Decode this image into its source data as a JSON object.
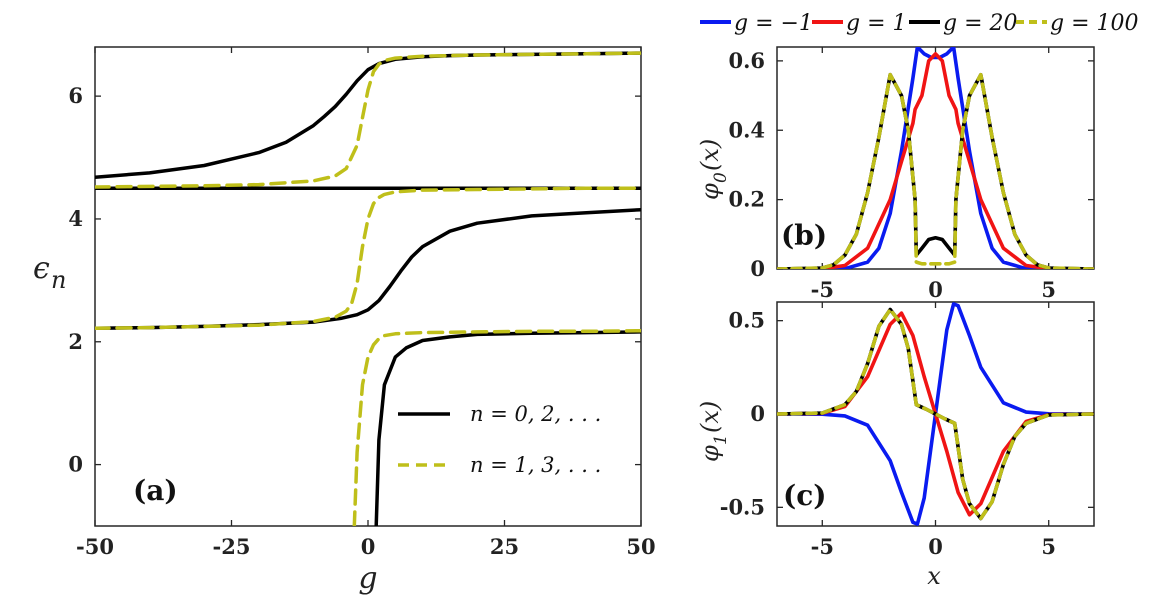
{
  "colors": {
    "black": "#000000",
    "yellow": "#bfbf1a",
    "blue": "#0a1bf0",
    "red": "#f01414"
  },
  "chart_data": [
    {
      "type": "line",
      "panel": "(a)",
      "xlabel": "g",
      "ylabel": "ε_n",
      "ylabel_base": "ϵ",
      "ylabel_sub": "n",
      "xlim": [
        -50,
        50
      ],
      "ylim": [
        -1,
        6.8
      ],
      "xticks": [
        -50,
        -25,
        0,
        25,
        50
      ],
      "xtick_labels": [
        "-50",
        "-25",
        "0",
        "25",
        "50"
      ],
      "yticks": [
        0,
        2,
        4,
        6
      ],
      "ytick_labels": [
        "0",
        "2",
        "4",
        "6"
      ],
      "legend": [
        {
          "label": "n = 0, 2, . . .",
          "style": "solid",
          "color": "#000000"
        },
        {
          "label": "n = 1, 3, . . .",
          "style": "dashed",
          "color": "#bfbf1a"
        }
      ],
      "series": [
        {
          "name": "n = 0",
          "group": "even",
          "x": [
            1.5,
            2,
            3,
            5,
            7,
            10,
            15,
            20,
            30,
            40,
            50
          ],
          "y": [
            -1,
            0.4,
            1.3,
            1.75,
            1.9,
            2.02,
            2.08,
            2.12,
            2.14,
            2.15,
            2.16
          ]
        },
        {
          "name": "n = 2",
          "group": "even",
          "x": [
            -50,
            -40,
            -30,
            -20,
            -10,
            -5,
            -2,
            0,
            2,
            4,
            6,
            8,
            10,
            15,
            20,
            30,
            40,
            50
          ],
          "y": [
            2.22,
            2.23,
            2.25,
            2.28,
            2.32,
            2.38,
            2.44,
            2.52,
            2.67,
            2.9,
            3.15,
            3.38,
            3.55,
            3.8,
            3.93,
            4.05,
            4.1,
            4.15
          ]
        },
        {
          "name": "n = 4",
          "group": "even",
          "x": [
            -50,
            50
          ],
          "y": [
            4.5,
            4.5
          ]
        },
        {
          "name": "n = 6",
          "group": "even",
          "x": [
            -50,
            -40,
            -30,
            -20,
            -15,
            -10,
            -8,
            -6,
            -4,
            -2,
            0,
            2,
            5,
            10,
            15,
            20,
            30,
            40,
            50
          ],
          "y": [
            4.68,
            4.75,
            4.87,
            5.08,
            5.25,
            5.52,
            5.67,
            5.83,
            6.03,
            6.25,
            6.43,
            6.53,
            6.6,
            6.64,
            6.66,
            6.67,
            6.68,
            6.69,
            6.7
          ]
        },
        {
          "name": "n = 1",
          "group": "odd",
          "x": [
            -2.5,
            -2,
            -1,
            0,
            1,
            2,
            3,
            5,
            10,
            20,
            30,
            40,
            50
          ],
          "y": [
            -1,
            0.2,
            1.3,
            1.75,
            1.95,
            2.05,
            2.1,
            2.13,
            2.15,
            2.16,
            2.17,
            2.17,
            2.18
          ]
        },
        {
          "name": "n = 3",
          "group": "odd",
          "x": [
            -50,
            -40,
            -30,
            -20,
            -10,
            -6,
            -4,
            -3,
            -2,
            -1,
            0,
            1,
            2,
            3,
            5,
            10,
            20,
            30,
            40,
            50
          ],
          "y": [
            2.22,
            2.23,
            2.25,
            2.27,
            2.33,
            2.4,
            2.5,
            2.62,
            2.95,
            3.55,
            4.0,
            4.25,
            4.35,
            4.4,
            4.44,
            4.47,
            4.48,
            4.49,
            4.5,
            4.5
          ]
        },
        {
          "name": "n = 5",
          "group": "odd",
          "x": [
            -50,
            -30,
            -20,
            -10,
            -6,
            -4,
            -2,
            -1,
            0,
            1,
            2,
            3,
            5,
            10,
            20,
            30,
            40,
            50
          ],
          "y": [
            4.52,
            4.54,
            4.56,
            4.62,
            4.7,
            4.82,
            5.2,
            5.65,
            6.1,
            6.4,
            6.52,
            6.58,
            6.62,
            6.65,
            6.67,
            6.68,
            6.69,
            6.7
          ]
        }
      ]
    },
    {
      "type": "line",
      "panel": "(b)",
      "xlabel": "",
      "ylabel": "φ0(x)",
      "ylabel_base": "φ",
      "ylabel_sub": "0",
      "ylabel_tail": "(x)",
      "xlim": [
        -7,
        7
      ],
      "ylim": [
        0,
        0.64
      ],
      "xticks": [
        -5,
        0,
        5
      ],
      "xtick_labels": [
        "-5",
        "0",
        "5"
      ],
      "yticks": [
        0,
        0.2,
        0.4,
        0.6
      ],
      "ytick_labels": [
        "0",
        "0.2",
        "0.4",
        "0.6"
      ],
      "legend": [
        {
          "label": "g = −1",
          "color": "#0a1bf0",
          "style": "solid"
        },
        {
          "label": "g = 1",
          "color": "#f01414",
          "style": "solid"
        },
        {
          "label": "g = 20",
          "color": "#000000",
          "style": "solid"
        },
        {
          "label": "g = 100",
          "color": "#bfbf1a",
          "style": "dashed"
        }
      ],
      "series": [
        {
          "name": "g = −1",
          "x": [
            -7,
            -5,
            -4,
            -3,
            -2.5,
            -2,
            -1.5,
            -1,
            -0.8,
            -0.5,
            -0.2,
            0,
            0.2,
            0.5,
            0.8,
            1,
            1.5,
            2,
            2.5,
            3,
            4,
            5,
            7
          ],
          "y": [
            0,
            0,
            0.001,
            0.02,
            0.06,
            0.16,
            0.34,
            0.55,
            0.64,
            0.62,
            0.61,
            0.61,
            0.61,
            0.62,
            0.64,
            0.55,
            0.34,
            0.16,
            0.06,
            0.02,
            0.001,
            0,
            0
          ]
        },
        {
          "name": "g = 1",
          "x": [
            -7,
            -5,
            -4,
            -3,
            -2,
            -1.5,
            -1,
            -0.9,
            -0.6,
            -0.3,
            0,
            0.3,
            0.6,
            0.9,
            1,
            1.5,
            2,
            3,
            4,
            5,
            7
          ],
          "y": [
            0,
            0.001,
            0.01,
            0.06,
            0.2,
            0.31,
            0.42,
            0.46,
            0.5,
            0.6,
            0.62,
            0.6,
            0.5,
            0.46,
            0.42,
            0.31,
            0.2,
            0.06,
            0.01,
            0.001,
            0
          ]
        },
        {
          "name": "g = 20",
          "x": [
            -7,
            -5,
            -4.5,
            -4,
            -3.5,
            -3,
            -2.5,
            -2,
            -1.5,
            -1.2,
            -0.9,
            -0.85,
            -0.6,
            -0.3,
            0,
            0.3,
            0.6,
            0.85,
            0.9,
            1.2,
            1.5,
            2,
            2.5,
            3,
            3.5,
            4,
            4.5,
            5,
            7
          ],
          "y": [
            0,
            0.003,
            0.012,
            0.04,
            0.1,
            0.22,
            0.38,
            0.56,
            0.5,
            0.4,
            0.2,
            0.04,
            0.06,
            0.085,
            0.09,
            0.085,
            0.06,
            0.04,
            0.2,
            0.4,
            0.5,
            0.56,
            0.38,
            0.22,
            0.1,
            0.04,
            0.012,
            0.003,
            0
          ]
        },
        {
          "name": "g = 100",
          "x": [
            -7,
            -5,
            -4.5,
            -4,
            -3.5,
            -3,
            -2.5,
            -2,
            -1.5,
            -1.2,
            -0.9,
            -0.85,
            -0.6,
            0,
            0.6,
            0.85,
            0.9,
            1.2,
            1.5,
            2,
            2.5,
            3,
            3.5,
            4,
            4.5,
            5,
            7
          ],
          "y": [
            0,
            0.003,
            0.012,
            0.04,
            0.1,
            0.22,
            0.38,
            0.56,
            0.5,
            0.4,
            0.2,
            0.02,
            0.015,
            0.015,
            0.015,
            0.02,
            0.2,
            0.4,
            0.5,
            0.56,
            0.38,
            0.22,
            0.1,
            0.04,
            0.012,
            0.003,
            0
          ]
        }
      ]
    },
    {
      "type": "line",
      "panel": "(c)",
      "xlabel": "x",
      "ylabel": "φ1(x)",
      "ylabel_base": "φ",
      "ylabel_sub": "1",
      "ylabel_tail": "(x)",
      "xlim": [
        -7,
        7
      ],
      "ylim": [
        -0.6,
        0.6
      ],
      "xticks": [
        -5,
        0,
        5
      ],
      "xtick_labels": [
        "-5",
        "0",
        "5"
      ],
      "yticks": [
        -0.5,
        0,
        0.5
      ],
      "ytick_labels": [
        "-0.5",
        "0",
        "0.5"
      ],
      "series": [
        {
          "name": "g = −1",
          "x": [
            -7,
            -5,
            -4,
            -3,
            -2,
            -1.5,
            -1,
            -0.8,
            -0.5,
            0,
            0.5,
            0.8,
            1,
            1.5,
            2,
            3,
            4,
            5,
            7
          ],
          "y": [
            0,
            -0.001,
            -0.01,
            -0.06,
            -0.25,
            -0.42,
            -0.58,
            -0.59,
            -0.45,
            0,
            0.45,
            0.59,
            0.58,
            0.42,
            0.25,
            0.06,
            0.01,
            0.001,
            0
          ]
        },
        {
          "name": "g = 1",
          "x": [
            -7,
            -5,
            -4,
            -3,
            -2,
            -1.5,
            -1,
            -0.5,
            0,
            0.5,
            1,
            1.5,
            2,
            3,
            4,
            5,
            7
          ],
          "y": [
            0,
            0.004,
            0.04,
            0.2,
            0.48,
            0.54,
            0.42,
            0.2,
            0,
            -0.2,
            -0.42,
            -0.54,
            -0.48,
            -0.2,
            -0.04,
            -0.004,
            0
          ]
        },
        {
          "name": "g = 20",
          "x": [
            -7,
            -5,
            -4,
            -3.5,
            -3,
            -2.5,
            -2,
            -1.5,
            -1.2,
            -0.85,
            -0.4,
            0,
            0.4,
            0.85,
            1.2,
            1.5,
            2,
            2.5,
            3,
            3.5,
            4,
            5,
            7
          ],
          "y": [
            0,
            0.005,
            0.05,
            0.12,
            0.27,
            0.47,
            0.56,
            0.48,
            0.35,
            0.05,
            0.025,
            0,
            -0.025,
            -0.05,
            -0.35,
            -0.48,
            -0.56,
            -0.47,
            -0.27,
            -0.12,
            -0.05,
            -0.005,
            0
          ]
        },
        {
          "name": "g = 100",
          "x": [
            -7,
            -5,
            -4,
            -3.5,
            -3,
            -2.5,
            -2,
            -1.5,
            -1.2,
            -0.85,
            -0.4,
            0,
            0.4,
            0.85,
            1.2,
            1.5,
            2,
            2.5,
            3,
            3.5,
            4,
            5,
            7
          ],
          "y": [
            0,
            0.005,
            0.05,
            0.12,
            0.27,
            0.47,
            0.56,
            0.48,
            0.35,
            0.05,
            0.025,
            0,
            -0.025,
            -0.05,
            -0.35,
            -0.48,
            -0.56,
            -0.47,
            -0.27,
            -0.12,
            -0.05,
            -0.005,
            0
          ]
        }
      ]
    }
  ]
}
